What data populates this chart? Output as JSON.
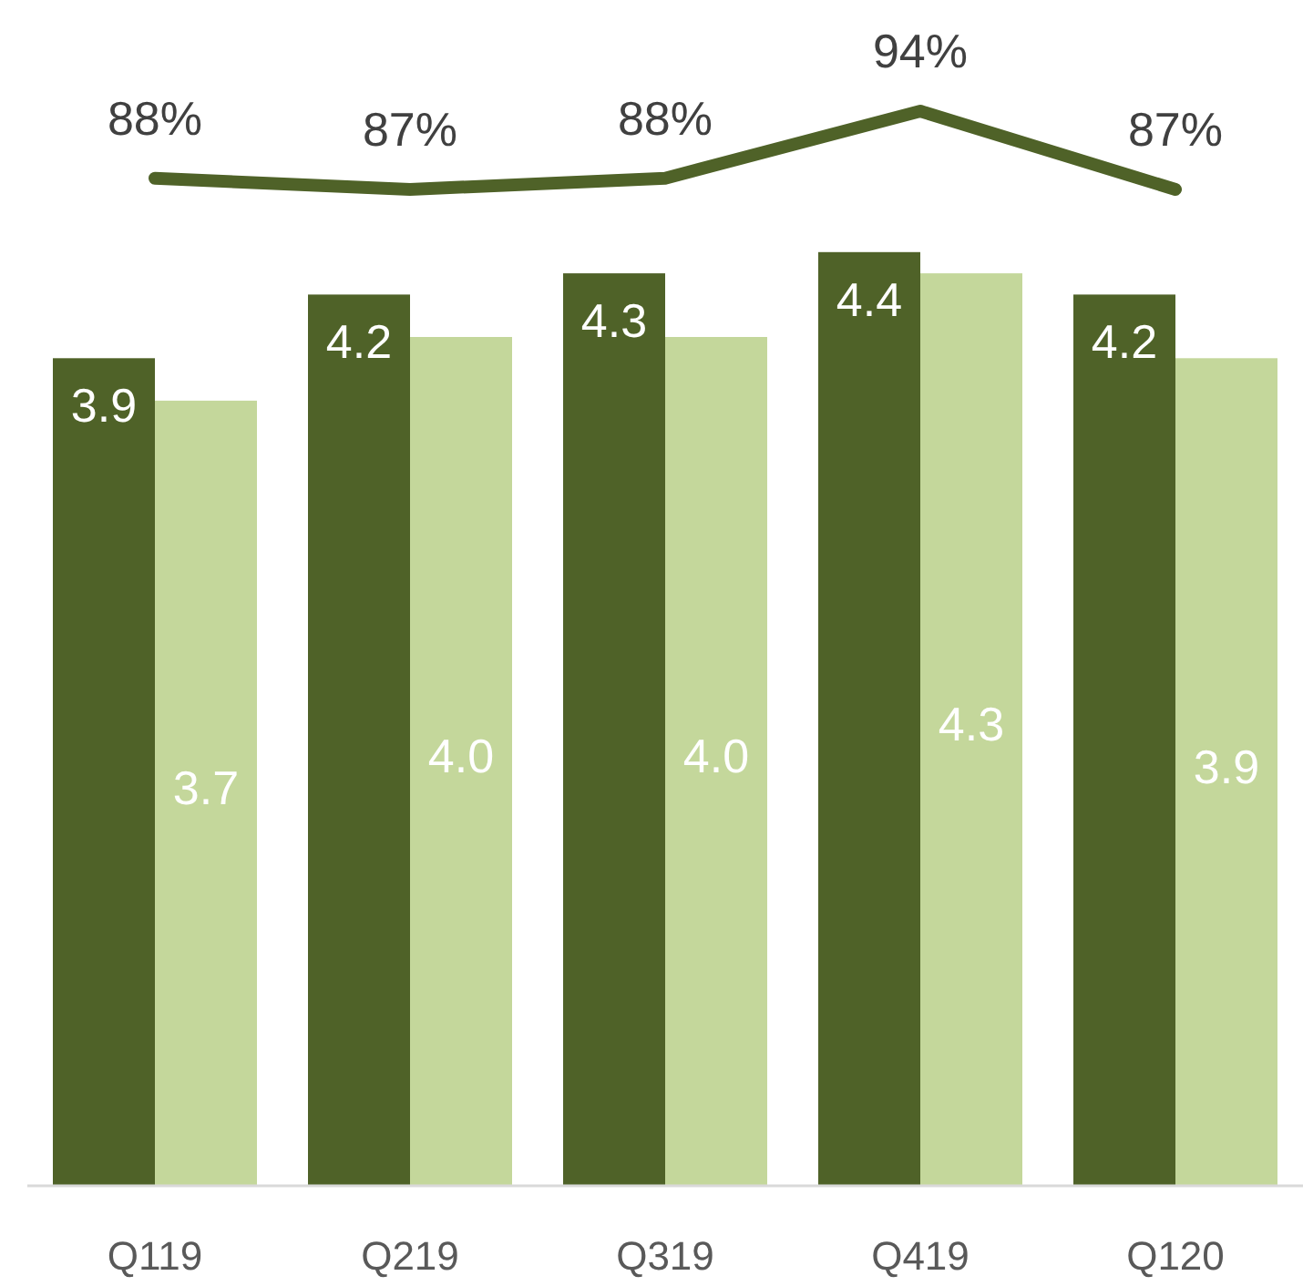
{
  "chart_data": [
    {
      "type": "line",
      "categories": [
        null,
        null,
        null,
        null,
        null
      ],
      "relative": false,
      "grid": false,
      "series": [
        {
          "color": "#4f6228",
          "values": [
            88,
            87,
            88,
            94,
            87
          ],
          "value_labels": [
            "88%",
            "87%",
            "88%",
            "94%",
            "87%"
          ]
        }
      ]
    },
    {
      "type": "bar",
      "categories": [
        "Q119",
        "Q219",
        "Q319",
        "Q419",
        "Q120"
      ],
      "relative": false,
      "grid": false,
      "series": [
        {
          "color": "#4f6228",
          "values": [
            3.9,
            4.2,
            4.3,
            4.4,
            4.2
          ],
          "value_labels": [
            "3.9",
            "4.2",
            "4.3",
            "4.4",
            "4.2"
          ]
        },
        {
          "color": "#c4d79b",
          "values": [
            3.7,
            4.0,
            4.0,
            4.3,
            3.9
          ],
          "value_labels": [
            "3.7",
            "4.0",
            "4.0",
            "4.3",
            "3.9"
          ]
        }
      ]
    }
  ]
}
